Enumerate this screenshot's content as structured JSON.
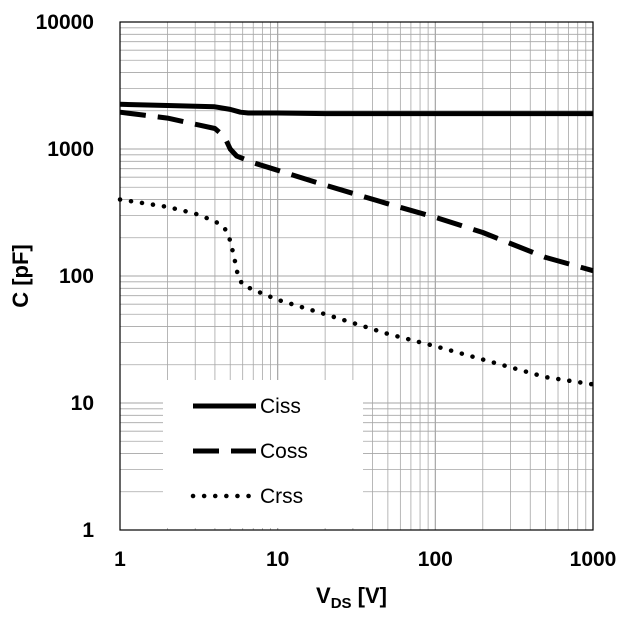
{
  "chart_data": {
    "type": "line",
    "title": "",
    "xlabel": "VDS [V]",
    "xlabel_parts": {
      "main": "V",
      "sub": "DS",
      "unit": " [V]"
    },
    "ylabel": "C [pF]",
    "xscale": "log",
    "yscale": "log",
    "xlim": [
      1,
      1000
    ],
    "ylim": [
      1,
      10000
    ],
    "grid": true,
    "legend_position": "bottom-left",
    "x_tick_labels": [
      "1",
      "10",
      "100",
      "1000"
    ],
    "y_tick_labels": [
      "1",
      "10",
      "100",
      "1000",
      "10000"
    ],
    "series": [
      {
        "name": "Ciss",
        "style": "solid",
        "x": [
          1,
          2,
          4,
          5,
          5.8,
          6.5,
          10,
          20,
          100,
          1000
        ],
        "y": [
          2250,
          2200,
          2150,
          2050,
          1950,
          1920,
          1920,
          1900,
          1900,
          1900
        ]
      },
      {
        "name": "Coss",
        "style": "dashed",
        "x": [
          1,
          2,
          4,
          4.6,
          5,
          5.5,
          6.2,
          7,
          10,
          20,
          50,
          100,
          200,
          500,
          1000
        ],
        "y": [
          1950,
          1750,
          1450,
          1250,
          1000,
          880,
          830,
          780,
          680,
          520,
          370,
          290,
          220,
          140,
          110
        ]
      },
      {
        "name": "Crss",
        "style": "dotted",
        "x": [
          1,
          2,
          3,
          4,
          4.6,
          5,
          5.3,
          5.6,
          6,
          7,
          10,
          20,
          50,
          100,
          200,
          500,
          1000
        ],
        "y": [
          400,
          350,
          310,
          270,
          240,
          190,
          140,
          100,
          85,
          78,
          65,
          50,
          35,
          28,
          22,
          16,
          14
        ]
      }
    ],
    "colors": {
      "line": "#000000",
      "grid": "#a6a6a6",
      "background": "#ffffff"
    }
  }
}
